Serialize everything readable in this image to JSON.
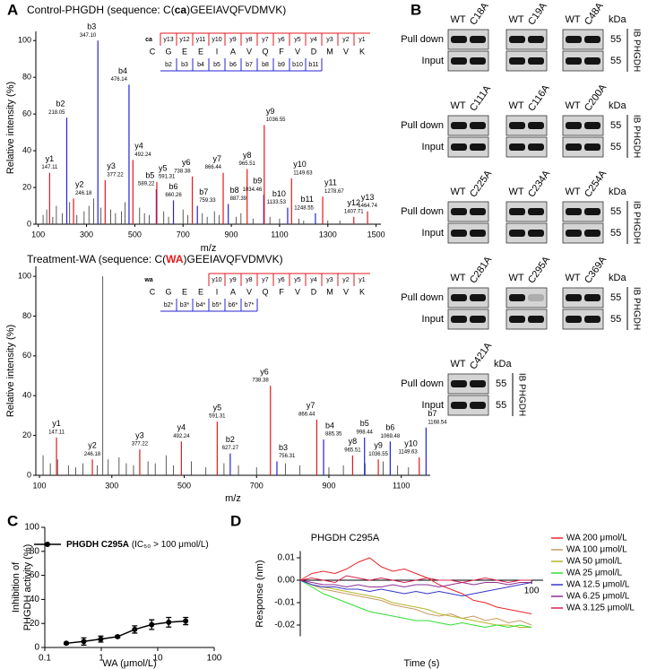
{
  "chart_data": [
    {
      "type": "spectrum",
      "panel": "A",
      "title_parts": [
        "Control-PHGDH (sequence: C(",
        "ca",
        ")GEEIAVQFVDMVK)"
      ],
      "highlight_color": "#000000",
      "x_label": "m/z",
      "y_label": "Relative intensity (%)",
      "xlim": [
        90,
        1520
      ],
      "xticks": [
        100,
        300,
        500,
        700,
        900,
        1100,
        1300,
        1500
      ],
      "ylim": [
        0,
        105
      ],
      "yticks": [
        0,
        20,
        40,
        60,
        80,
        100
      ],
      "ion_colors": {
        "y": "#e3191c",
        "b": "#2424d4"
      },
      "stick_color": "#333333",
      "peaks": {
        "ions": [
          "y1",
          "y2",
          "b2",
          "b3",
          "y3",
          "b4",
          "y4",
          "b5",
          "y5",
          "b6",
          "y6",
          "b7",
          "y7",
          "b8",
          "y8",
          "b9",
          "y9",
          "b10",
          "y10",
          "b11",
          "y11",
          "y12",
          "y13"
        ],
        "x": [
          147.11,
          246.18,
          218.05,
          347.1,
          377.22,
          476.14,
          492.24,
          589.22,
          591.31,
          660.26,
          738.38,
          759.33,
          866.44,
          887.39,
          965.51,
          1034.46,
          1036.55,
          1133.53,
          1149.63,
          1248.55,
          1278.67,
          1407.71,
          1464.74
        ],
        "x_labels": [
          "147.11",
          "246.18",
          "218.05",
          "347.10",
          "377.22",
          "476.14",
          "492.24",
          "589.22",
          "591.31",
          "660.26",
          "738.38",
          "759.33",
          "866.44",
          "887.39",
          "965.51",
          "1034.46",
          "1036.55",
          "1133.53",
          "1149.63",
          "1248.55",
          "1278.67",
          "1407.71",
          "1464.74"
        ],
        "values": [
          28,
          14,
          58,
          100,
          24,
          76,
          35,
          19,
          23,
          13,
          26,
          10,
          28,
          11,
          30,
          16,
          54,
          9,
          25,
          6,
          15,
          4,
          7
        ]
      },
      "minor_peaks": {
        "x": [
          120,
          135,
          160,
          175,
          200,
          230,
          260,
          290,
          310,
          330,
          360,
          400,
          420,
          445,
          460,
          520,
          540,
          560,
          620,
          640,
          700,
          720,
          780,
          800,
          830,
          850,
          920,
          940,
          990,
          1060,
          1100,
          1180,
          1200,
          1300,
          1350
        ],
        "values": [
          5,
          8,
          4,
          10,
          6,
          12,
          5,
          7,
          10,
          14,
          9,
          8,
          6,
          7,
          12,
          9,
          6,
          5,
          7,
          4,
          8,
          5,
          6,
          4,
          7,
          5,
          4,
          6,
          3,
          4,
          3,
          3,
          2,
          2,
          2
        ]
      },
      "fragment_map": {
        "modification": "ca",
        "residues": [
          "C",
          "G",
          "E",
          "E",
          "I",
          "A",
          "V",
          "Q",
          "F",
          "V",
          "D",
          "M",
          "V",
          "K"
        ],
        "y_ions": [
          "y13",
          "y12",
          "y11",
          "y10",
          "y9",
          "y8",
          "y7",
          "y6",
          "y5",
          "y4",
          "y3",
          "y2",
          "y1"
        ],
        "b_ions": [
          "b2",
          "b3",
          "b4",
          "b5",
          "b6",
          "b7",
          "b8",
          "b9",
          "b10",
          "b11"
        ]
      }
    },
    {
      "type": "spectrum",
      "title_parts": [
        "Treatment-WA (sequence: C(",
        "WA",
        ")GEEIAVQFVDMVK)"
      ],
      "highlight_color": "#e3191c",
      "x_label": "m/z",
      "y_label": "Relative intensity (%)",
      "xlim": [
        90,
        1180
      ],
      "xticks": [
        100,
        300,
        500,
        700,
        900,
        1100
      ],
      "ylim": [
        0,
        105
      ],
      "yticks": [
        0,
        20,
        40,
        60,
        80,
        100
      ],
      "ion_colors": {
        "y": "#e3191c",
        "b": "#2424d4"
      },
      "stick_color": "#333333",
      "peaks": {
        "ions": [
          "y1",
          "y2",
          "y3",
          "y4",
          "y5",
          "b2",
          "y6",
          "b3",
          "y7",
          "b4",
          "y8",
          "b5",
          "y9",
          "b6",
          "y10",
          "b7"
        ],
        "x": [
          147.11,
          246.18,
          377.22,
          492.24,
          591.31,
          627.27,
          738.38,
          756.31,
          866.44,
          885.35,
          965.51,
          998.44,
          1036.55,
          1069.48,
          1149.63,
          1168.54
        ],
        "x_labels": [
          "147.11",
          "246.18",
          "377.22",
          "492.24",
          "591.31",
          "627.27",
          "738.38",
          "756.31",
          "866.44",
          "885.35",
          "965.51",
          "998.44",
          "1036.55",
          "1069.48",
          "1149.63",
          "1168.54"
        ],
        "values": [
          19,
          8,
          13,
          17,
          27,
          11,
          45,
          7,
          28,
          18,
          10,
          19,
          8,
          17,
          9,
          24
        ]
      },
      "minor_peaks": {
        "x": [
          110,
          130,
          150,
          180,
          200,
          220,
          260,
          275,
          290,
          320,
          340,
          360,
          400,
          420,
          450,
          470,
          520,
          560,
          610,
          650,
          700,
          780,
          820,
          900,
          940,
          1000,
          1050,
          1090,
          1120
        ],
        "values": [
          10,
          6,
          8,
          5,
          4,
          6,
          5,
          100,
          8,
          9,
          6,
          5,
          7,
          6,
          10,
          5,
          7,
          4,
          6,
          5,
          4,
          6,
          5,
          4,
          5,
          6,
          7,
          5,
          4
        ]
      },
      "fragment_map": {
        "modification": "wa",
        "residues": [
          "C",
          "G",
          "E",
          "E",
          "I",
          "A",
          "V",
          "Q",
          "F",
          "V",
          "D",
          "M",
          "V",
          "K"
        ],
        "y_ions": [
          "y10",
          "y9",
          "y8",
          "y7",
          "y6",
          "y5",
          "y4",
          "y3",
          "y2",
          "y1"
        ],
        "b_ions": [
          "b2*",
          "b3*",
          "b4*",
          "b5*",
          "b6*",
          "b7*"
        ]
      }
    },
    {
      "type": "line",
      "panel": "C",
      "log_x": true,
      "marker": "circle",
      "legend": "upper left",
      "x_label": "WA (μmol/L)",
      "y_label": [
        "Inhibition of",
        "PHGDH activity (%)"
      ],
      "xlim": [
        0.1,
        100
      ],
      "xticks": [
        0.1,
        1,
        10,
        100
      ],
      "ylim": [
        0,
        100
      ],
      "yticks": [
        0,
        20,
        40,
        60,
        80,
        100
      ],
      "x": [
        0.24,
        0.49,
        0.98,
        1.95,
        3.91,
        7.81,
        15.63,
        31.25
      ],
      "legend_note": "(IC₅₀ > 100 μmol/L)",
      "series": [
        {
          "name": "PHGDH C295A",
          "color": "#000000",
          "values": [
            3.5,
            5,
            7,
            9,
            15,
            19,
            21,
            22
          ],
          "errors": [
            0.8,
            3,
            2.5,
            1,
            3,
            4,
            4,
            3
          ]
        }
      ]
    },
    {
      "type": "line",
      "panel": "D",
      "title": "PHGDH C295A",
      "legend": "right",
      "x_axis_at_zero": true,
      "x_label": "Time (s)",
      "y_label": "Response (nm)",
      "xlim": [
        0,
        105
      ],
      "xticks": [
        100
      ],
      "ylim": [
        -0.025,
        0.013
      ],
      "yticks": [
        0.01,
        {
          "value": 0,
          "label": "0.00"
        },
        -0.01,
        -0.02
      ],
      "x": [
        0,
        5,
        10,
        15,
        20,
        25,
        30,
        35,
        40,
        45,
        50,
        55,
        60,
        65,
        70,
        75,
        80,
        85,
        90,
        95,
        100
      ],
      "series": [
        {
          "name": "WA 200 μmol/L",
          "color": "#e8262a",
          "values": [
            0,
            0.003,
            0.004,
            0.003,
            0.005,
            0.008,
            0.01,
            0.006,
            0.004,
            0.005,
            0.003,
            0.001,
            -0.002,
            -0.004,
            -0.006,
            -0.009,
            -0.01,
            -0.012,
            -0.013,
            -0.014,
            -0.015
          ]
        },
        {
          "name": "WA 100 μmol/L",
          "color": "#c99a62",
          "values": [
            0,
            -0.002,
            -0.004,
            -0.005,
            -0.006,
            -0.007,
            -0.008,
            -0.009,
            -0.011,
            -0.012,
            -0.013,
            -0.015,
            -0.016,
            -0.015,
            -0.017,
            -0.016,
            -0.018,
            -0.017,
            -0.019,
            -0.018,
            -0.02
          ]
        },
        {
          "name": "WA 50 μmol/L",
          "color": "#b5b52a",
          "values": [
            0,
            -0.002,
            -0.003,
            -0.004,
            -0.005,
            -0.006,
            -0.007,
            -0.008,
            -0.01,
            -0.011,
            -0.012,
            -0.013,
            -0.015,
            -0.016,
            -0.017,
            -0.018,
            -0.019,
            -0.02,
            -0.02,
            -0.021,
            -0.021
          ]
        },
        {
          "name": "WA 25 μmol/L",
          "color": "#33dd33",
          "values": [
            0,
            -0.003,
            -0.006,
            -0.008,
            -0.01,
            -0.012,
            -0.014,
            -0.015,
            -0.016,
            -0.017,
            -0.018,
            -0.018,
            -0.019,
            -0.02,
            -0.019,
            -0.02,
            -0.021,
            -0.02,
            -0.021,
            -0.02,
            -0.021
          ]
        },
        {
          "name": "WA 12.5 μmol/L",
          "color": "#3535c8",
          "values": [
            0,
            -0.002,
            -0.003,
            -0.003,
            -0.004,
            -0.004,
            -0.005,
            -0.004,
            -0.005,
            -0.006,
            -0.005,
            -0.006,
            -0.005,
            -0.006,
            -0.007,
            -0.006,
            -0.005,
            -0.004,
            -0.003,
            -0.002,
            -0.001
          ]
        },
        {
          "name": "WA 6.25 μmol/L",
          "color": "#8e2f93",
          "values": [
            0,
            -0.001,
            -0.002,
            -0.002,
            -0.003,
            -0.002,
            -0.003,
            -0.003,
            -0.002,
            -0.003,
            -0.002,
            -0.002,
            -0.003,
            -0.002,
            -0.001,
            -0.002,
            -0.001,
            -0.001,
            -0.002,
            -0.001,
            -0.001
          ]
        },
        {
          "name": "WA 3.125 μmol/L",
          "color": "#d9234f",
          "values": [
            0,
            0.001,
            0,
            -0.001,
            0.002,
            0.001,
            0,
            0.001,
            0,
            -0.001,
            0,
            0.001,
            0,
            0,
            -0.001,
            0,
            0.001,
            0,
            -0.001,
            0,
            0
          ]
        }
      ]
    }
  ],
  "blots": {
    "panel": "B",
    "row_labels": [
      "Pull down",
      "Input"
    ],
    "kda_label": "kDa",
    "marker": "55",
    "antibody": "IB PHGDH",
    "rows": [
      [
        {
          "lanes": [
            "WT",
            "C18A"
          ]
        },
        {
          "lanes": [
            "WT",
            "C19A"
          ]
        },
        {
          "lanes": [
            "WT",
            "C48A"
          ]
        }
      ],
      [
        {
          "lanes": [
            "WT",
            "C111A"
          ]
        },
        {
          "lanes": [
            "WT",
            "C116A"
          ]
        },
        {
          "lanes": [
            "WT",
            "C200A"
          ]
        }
      ],
      [
        {
          "lanes": [
            "WT",
            "C225A"
          ]
        },
        {
          "lanes": [
            "WT",
            "C234A"
          ]
        },
        {
          "lanes": [
            "WT",
            "C254A"
          ]
        }
      ],
      [
        {
          "lanes": [
            "WT",
            "C281A"
          ]
        },
        {
          "lanes": [
            "WT",
            "C295A"
          ],
          "pull_down_intensity": [
            1,
            0.2
          ]
        },
        {
          "lanes": [
            "WT",
            "C369A"
          ]
        }
      ],
      [
        {
          "lanes": [
            "WT",
            "C421A"
          ]
        }
      ]
    ]
  }
}
